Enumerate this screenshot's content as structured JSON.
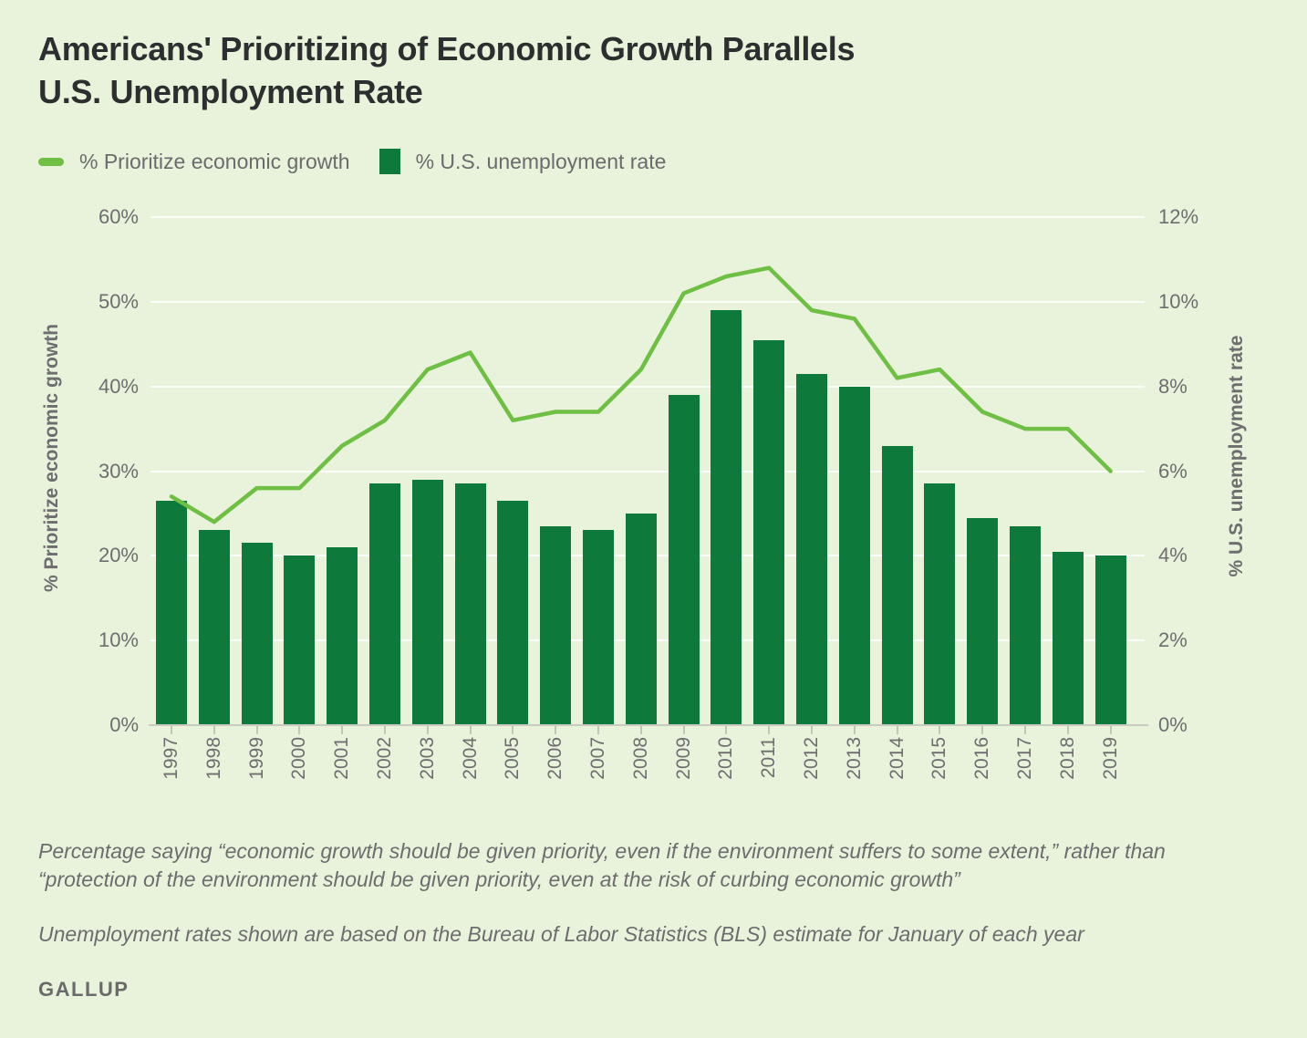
{
  "page": {
    "title_line1": "Americans' Prioritizing of Economic Growth Parallels",
    "title_line2": "U.S. Unemployment Rate",
    "background_color": "#e9f2db",
    "brand": "GALLUP"
  },
  "legend": [
    {
      "label": "% Prioritize economic growth",
      "swatch": "line",
      "color": "#6fbf45"
    },
    {
      "label": "% U.S. unemployment rate",
      "swatch": "bar",
      "color": "#0d7a3c"
    }
  ],
  "notes": {
    "methodology": "Percentage saying “economic growth should be given priority, even if the environment suffers to some extent,” rather than “protection of the environment should be given priority, even at the risk of curbing economic growth”",
    "unemployment_note": "Unemployment rates shown are based on the Bureau of Labor Statistics (BLS) estimate for January of each year"
  },
  "chart_data": {
    "type": "combo",
    "categories": [
      "1997",
      "1998",
      "1999",
      "2000",
      "2001",
      "2002",
      "2003",
      "2004",
      "2005",
      "2006",
      "2007",
      "2008",
      "2009",
      "2010",
      "2011",
      "2012",
      "2013",
      "2014",
      "2015",
      "2016",
      "2017",
      "2018",
      "2019"
    ],
    "series": [
      {
        "name": "% Prioritize economic growth",
        "type": "line",
        "axis": "left",
        "color": "#6fbf45",
        "values": [
          27,
          24,
          28,
          28,
          33,
          36,
          42,
          44,
          36,
          37,
          37,
          42,
          51,
          53,
          54,
          49,
          48,
          41,
          42,
          37,
          35,
          35,
          30
        ]
      },
      {
        "name": "% U.S. unemployment rate",
        "type": "bar",
        "axis": "right",
        "color": "#0d7a3c",
        "values": [
          5.3,
          4.6,
          4.3,
          4.0,
          4.2,
          5.7,
          5.8,
          5.7,
          5.3,
          4.7,
          4.6,
          5.0,
          7.8,
          9.8,
          9.1,
          8.3,
          8.0,
          6.6,
          5.7,
          4.9,
          4.7,
          4.1,
          4.0
        ]
      }
    ],
    "axes": {
      "left": {
        "title": "% Prioritize economic growth",
        "min": 0,
        "max": 60,
        "tick_interval": 10,
        "labels": [
          "0%",
          "10%",
          "20%",
          "30%",
          "40%",
          "50%",
          "60%"
        ]
      },
      "right": {
        "title": "% U.S. unemployment rate",
        "min": 0,
        "max": 12,
        "tick_interval": 2,
        "labels": [
          "0%",
          "2%",
          "4%",
          "6%",
          "8%",
          "10%",
          "12%"
        ]
      }
    },
    "grid": "horizontal white lines, legend top-left, x labels rotated 90° CCW"
  }
}
